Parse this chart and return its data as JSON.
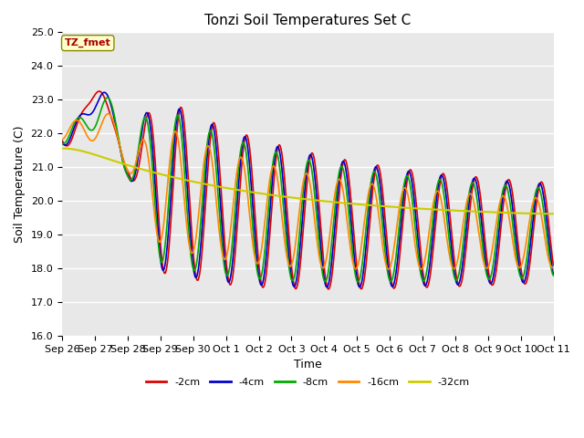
{
  "title": "Tonzi Soil Temperatures Set C",
  "xlabel": "Time",
  "ylabel": "Soil Temperature (C)",
  "ylim": [
    16.0,
    25.0
  ],
  "yticks": [
    16.0,
    17.0,
    18.0,
    19.0,
    20.0,
    21.0,
    22.0,
    23.0,
    24.0,
    25.0
  ],
  "x_tick_labels": [
    "Sep 26",
    "Sep 27",
    "Sep 28",
    "Sep 29",
    "Sep 30",
    "Oct 1",
    "Oct 2",
    "Oct 3",
    "Oct 4",
    "Oct 5",
    "Oct 6",
    "Oct 7",
    "Oct 8",
    "Oct 9",
    "Oct 10",
    "Oct 11"
  ],
  "annotation_text": "TZ_fmet",
  "annotation_bg": "#ffffcc",
  "annotation_border": "#888800",
  "annotation_text_color": "#aa0000",
  "series": [
    {
      "label": "-2cm",
      "color": "#dd0000",
      "lw": 1.2
    },
    {
      "label": "-4cm",
      "color": "#0000cc",
      "lw": 1.2
    },
    {
      "label": "-8cm",
      "color": "#00aa00",
      "lw": 1.2
    },
    {
      "label": "-16cm",
      "color": "#ff8800",
      "lw": 1.2
    },
    {
      "label": "-32cm",
      "color": "#cccc00",
      "lw": 1.5
    }
  ],
  "fig_bg": "#ffffff",
  "plot_bg": "#e8e8e8",
  "grid_color": "#ffffff",
  "title_fontsize": 11,
  "axis_fontsize": 9,
  "tick_fontsize": 8
}
